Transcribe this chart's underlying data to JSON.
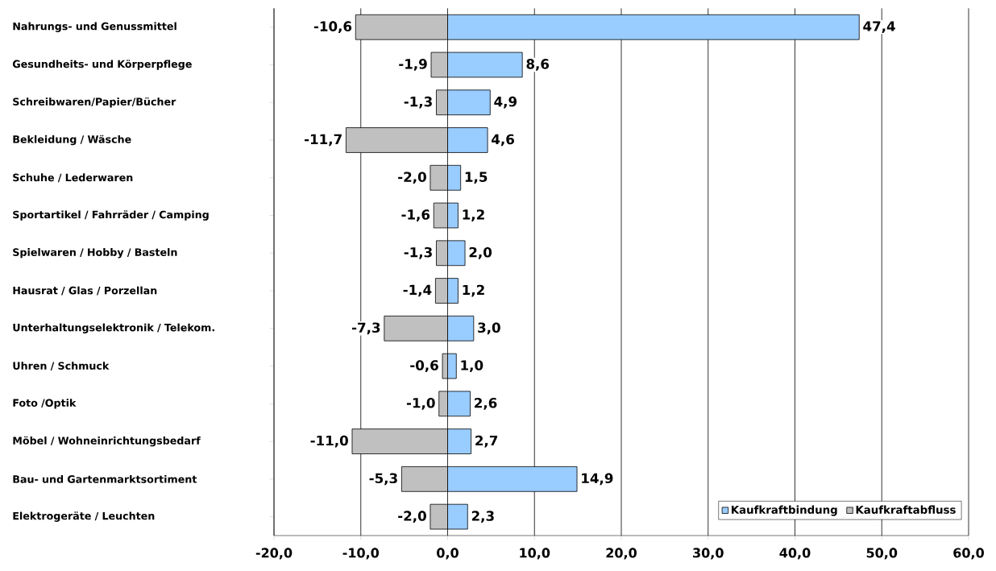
{
  "chart_data": {
    "type": "bar",
    "orientation": "horizontal",
    "stacked": true,
    "categories": [
      "Nahrungs- und Genussmittel",
      "Gesundheits- und Körperpflege",
      "Schreibwaren/Papier/Bücher",
      "Bekleidung / Wäsche",
      "Schuhe / Lederwaren",
      "Sportartikel / Fahrräder / Camping",
      "Spielwaren / Hobby / Basteln",
      "Hausrat / Glas / Porzellan",
      "Unterhaltungselektronik / Telekom.",
      "Uhren / Schmuck",
      "Foto /Optik",
      "Möbel / Wohneinrichtungsbedarf",
      "Bau- und Gartenmarktsortiment",
      "Elektrogeräte / Leuchten"
    ],
    "series": [
      {
        "name": "Kaufkraftbindung",
        "color": "#99ccff",
        "values": [
          47.4,
          8.6,
          4.9,
          4.6,
          1.5,
          1.2,
          2.0,
          1.2,
          3.0,
          1.0,
          2.6,
          2.7,
          14.9,
          2.3
        ],
        "value_labels": [
          "47,4",
          "8,6",
          "4,9",
          "4,6",
          "1,5",
          "1,2",
          "2,0",
          "1,2",
          "3,0",
          "1,0",
          "2,6",
          "2,7",
          "14,9",
          "2,3"
        ]
      },
      {
        "name": "Kaufkraftabfluss",
        "color": "#c0c0c0",
        "values": [
          -10.6,
          -1.9,
          -1.3,
          -11.7,
          -2.0,
          -1.6,
          -1.3,
          -1.4,
          -7.3,
          -0.6,
          -1.0,
          -11.0,
          -5.3,
          -2.0
        ],
        "value_labels": [
          "-10,6",
          "-1,9",
          "-1,3",
          "-11,7",
          "-2,0",
          "-1,6",
          "-1,3",
          "-1,4",
          "-7,3",
          "-0,6",
          "-1,0",
          "-11,0",
          "-5,3",
          "-2,0"
        ]
      }
    ],
    "xlim": [
      -20,
      60
    ],
    "xticks": [
      {
        "value": -20,
        "label": "-20,0"
      },
      {
        "value": -10,
        "label": "-10,0"
      },
      {
        "value": 0,
        "label": "0,0"
      },
      {
        "value": 10,
        "label": "10,0"
      },
      {
        "value": 20,
        "label": "20,0"
      },
      {
        "value": 30,
        "label": "30,0"
      },
      {
        "value": 40,
        "label": "40,0"
      },
      {
        "value": 50,
        "label": "50,0"
      },
      {
        "value": 60,
        "label": "60,0"
      }
    ],
    "grid": "x",
    "legend": "bottom right"
  }
}
